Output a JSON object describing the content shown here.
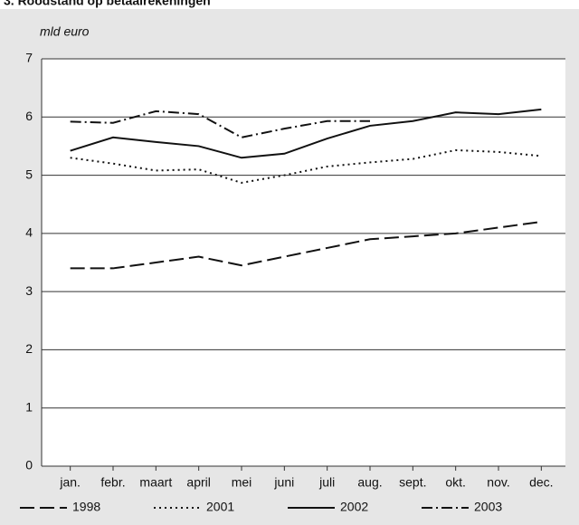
{
  "chart_data": {
    "type": "line",
    "title": "3. Roodstand op betaalrekeningen",
    "y_label": "mld euro",
    "categories": [
      "jan.",
      "febr.",
      "maart",
      "april",
      "mei",
      "juni",
      "juli",
      "aug.",
      "sept.",
      "okt.",
      "nov.",
      "dec."
    ],
    "ylim": [
      0,
      7
    ],
    "yticks": [
      0,
      1,
      2,
      3,
      4,
      5,
      6,
      7
    ],
    "grid": true,
    "series": [
      {
        "name": "1998",
        "color": "#111111",
        "dash": "16 6",
        "values": [
          3.4,
          3.4,
          3.5,
          3.6,
          3.45,
          3.6,
          3.75,
          3.9,
          3.95,
          4.0,
          4.1,
          4.2
        ]
      },
      {
        "name": "2001",
        "color": "#111111",
        "dash": "2 4",
        "values": [
          5.3,
          5.2,
          5.08,
          5.1,
          4.87,
          5.0,
          5.15,
          5.22,
          5.28,
          5.43,
          5.4,
          5.33
        ]
      },
      {
        "name": "2002",
        "color": "#111111",
        "dash": "none",
        "values": [
          5.42,
          5.65,
          5.57,
          5.5,
          5.3,
          5.37,
          5.63,
          5.85,
          5.93,
          6.08,
          6.05,
          6.13
        ]
      },
      {
        "name": "2003",
        "color": "#111111",
        "dash": "12 4 2 4",
        "values": [
          5.92,
          5.9,
          6.1,
          6.05,
          5.65,
          5.8,
          5.93,
          5.93,
          null,
          null,
          null,
          null
        ]
      }
    ]
  }
}
